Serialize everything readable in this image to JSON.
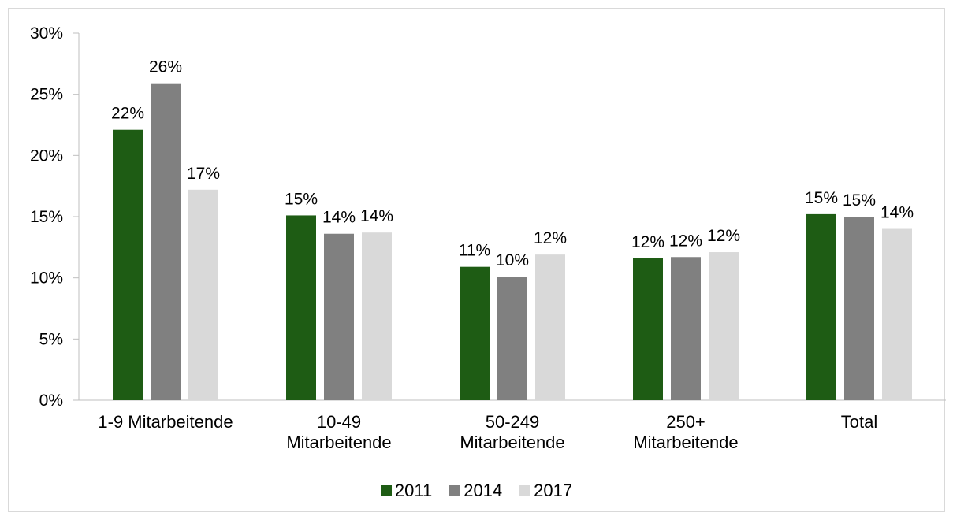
{
  "chart_data": {
    "type": "bar",
    "categories": [
      "1-9 Mitarbeitende",
      "10-49\nMitarbeitende",
      "50-249\nMitarbeitende",
      "250+\nMitarbeitende",
      "Total"
    ],
    "series": [
      {
        "name": "2011",
        "color": "#1e5c14",
        "values": [
          22.1,
          15.1,
          10.9,
          11.6,
          15.2
        ],
        "value_labels": [
          "22%",
          "15%",
          "11%",
          "12%",
          "15%"
        ]
      },
      {
        "name": "2014",
        "color": "#808080",
        "values": [
          25.9,
          13.6,
          10.1,
          11.7,
          15.0
        ],
        "value_labels": [
          "26%",
          "14%",
          "10%",
          "12%",
          "15%"
        ]
      },
      {
        "name": "2017",
        "color": "#d9d9d9",
        "values": [
          17.2,
          13.7,
          11.9,
          12.1,
          14.0
        ],
        "value_labels": [
          "17%",
          "14%",
          "12%",
          "12%",
          "14%"
        ]
      }
    ],
    "ylim": [
      0,
      30
    ],
    "yticks": [
      {
        "value": 0,
        "label": "0%"
      },
      {
        "value": 5,
        "label": "5%"
      },
      {
        "value": 10,
        "label": "10%"
      },
      {
        "value": 15,
        "label": "15%"
      },
      {
        "value": 20,
        "label": "20%"
      },
      {
        "value": 25,
        "label": "25%"
      },
      {
        "value": 30,
        "label": "30%"
      }
    ],
    "legend": "bottom"
  }
}
